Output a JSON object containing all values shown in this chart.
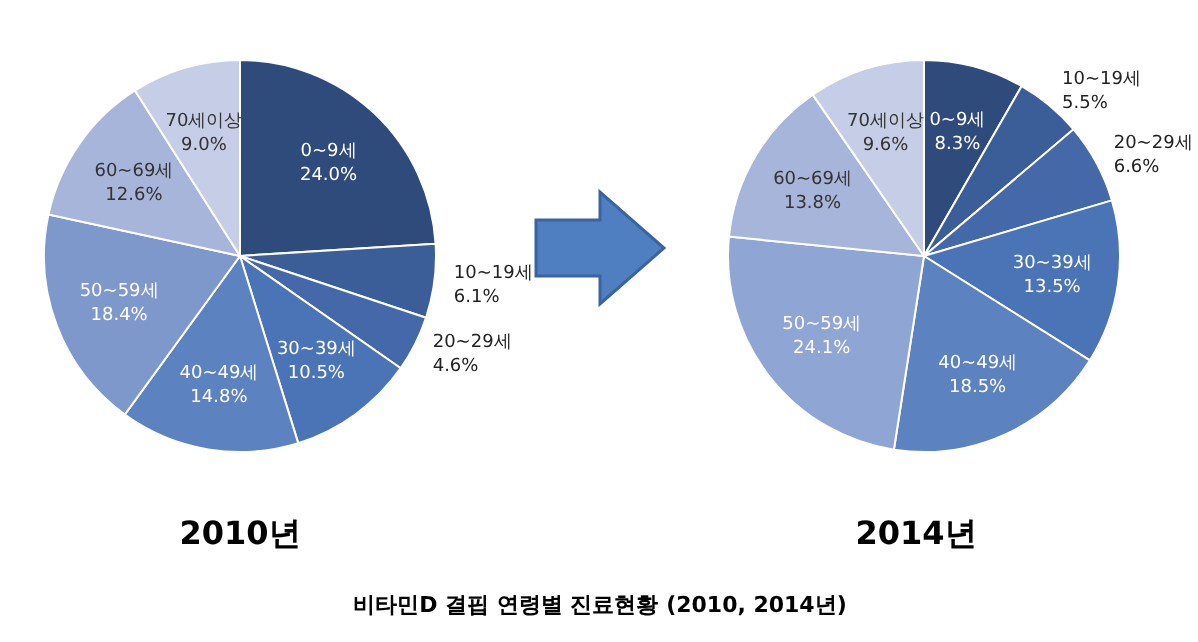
{
  "chart_data": [
    {
      "type": "pie",
      "title": "2010년",
      "categories": [
        "0~9세",
        "10~19세",
        "20~29세",
        "30~39세",
        "40~49세",
        "50~59세",
        "60~69세",
        "70세이상"
      ],
      "values": [
        24.0,
        6.1,
        4.6,
        10.5,
        14.8,
        18.4,
        12.6,
        9.0
      ],
      "value_labels": [
        "24.0%",
        "6.1%",
        "4.6%",
        "10.5%",
        "14.8%",
        "18.4%",
        "12.6%",
        "9.0%"
      ],
      "colors": [
        "#2f4b7c",
        "#3b5e98",
        "#4468a8",
        "#4b74b6",
        "#5c82c0",
        "#7f98cc",
        "#a6b5d9",
        "#c5cee6"
      ]
    },
    {
      "type": "pie",
      "title": "2014년",
      "categories": [
        "0~9세",
        "10~19세",
        "20~29세",
        "30~39세",
        "40~49세",
        "50~59세",
        "60~69세",
        "70세이상"
      ],
      "values": [
        8.3,
        5.5,
        6.6,
        13.5,
        18.5,
        24.1,
        13.8,
        9.6
      ],
      "value_labels": [
        "8.3%",
        "5.5%",
        "6.6%",
        "13.5%",
        "18.5%",
        "24.1%",
        "13.8%",
        "9.6%"
      ],
      "colors": [
        "#2f4b7c",
        "#3b5e98",
        "#4468a8",
        "#4b74b6",
        "#5c82c0",
        "#8fa5d4",
        "#a6b5d9",
        "#c5cee6"
      ],
      "annotations": [
        "비타민D 결핍 연령별 진료현황 (2010, 2014년)"
      ]
    }
  ]
}
